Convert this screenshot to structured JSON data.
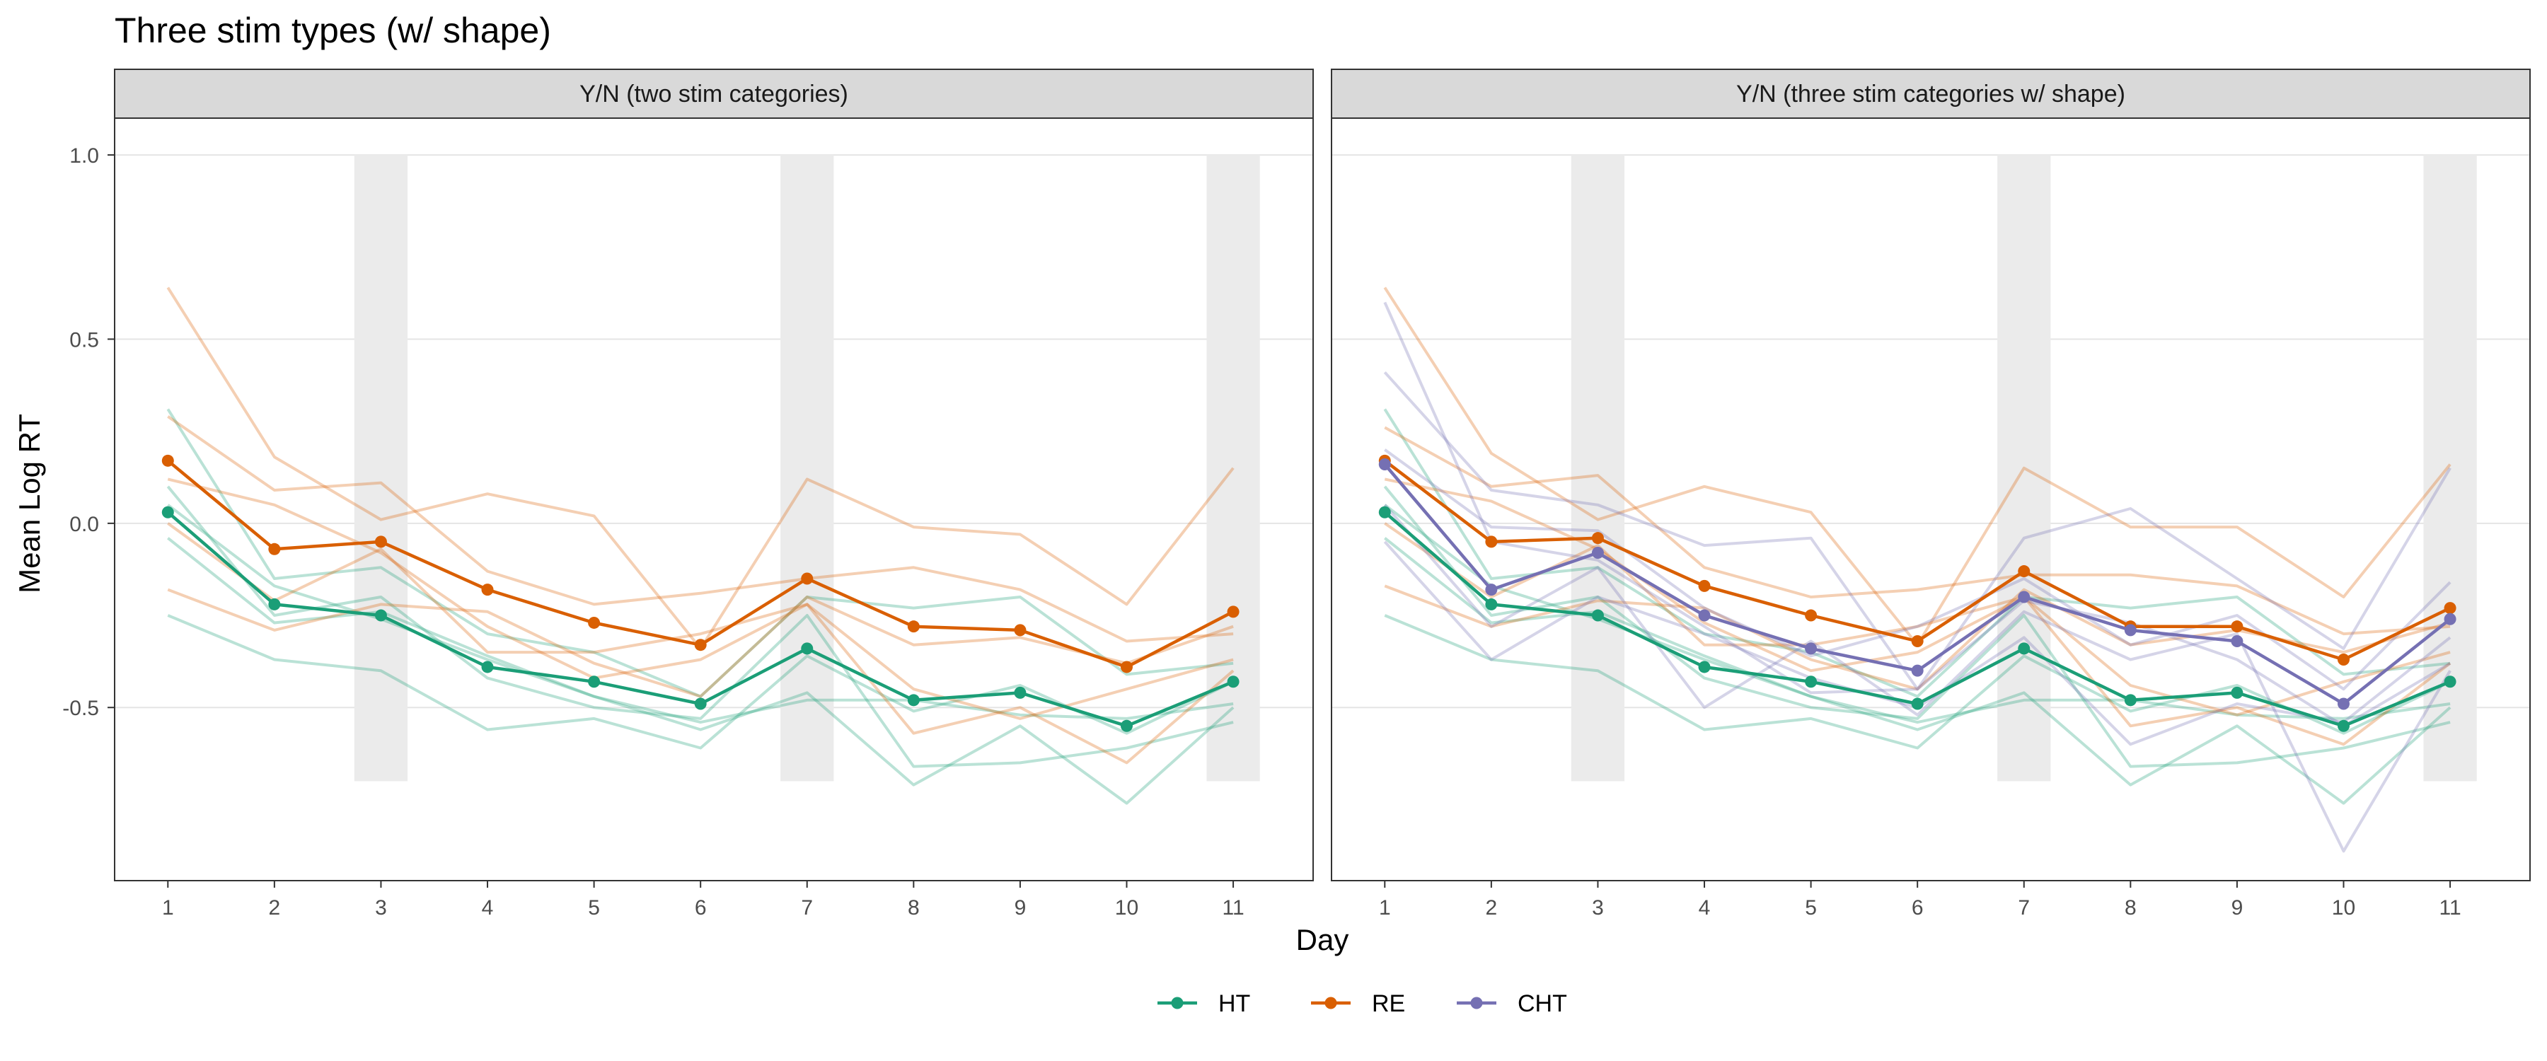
{
  "chart_data": {
    "type": "line",
    "title": "Three stim types (w/ shape)",
    "xlabel": "Day",
    "ylabel": "Mean Log RT",
    "x": [
      1,
      2,
      3,
      4,
      5,
      6,
      7,
      8,
      9,
      10,
      11
    ],
    "x_ticks": [
      "1",
      "2",
      "3",
      "4",
      "5",
      "6",
      "7",
      "8",
      "9",
      "10",
      "11"
    ],
    "y_ticks": [
      1.0,
      0.5,
      0.0,
      -0.5
    ],
    "y_tick_labels": [
      "1.0",
      "0.5",
      "0.0",
      "-0.5"
    ],
    "ylim": [
      -0.97,
      1.1
    ],
    "xlim": [
      0.5,
      11.75
    ],
    "grid": true,
    "legend_position": "bottom",
    "shaded_days": [
      3,
      7,
      11
    ],
    "shade_range": [
      -0.7,
      1.0
    ],
    "colors": {
      "HT": "#1b9e77",
      "RE": "#d95f02",
      "CHT": "#7570b3",
      "shade": "#ebebeb",
      "strip_bg": "#d9d9d9",
      "grid": "#e5e5e5"
    },
    "legend": [
      "HT",
      "RE",
      "CHT"
    ],
    "panels": [
      {
        "strip": "Y/N (two stim categories)",
        "series": [
          {
            "name": "HT",
            "values": [
              0.03,
              -0.22,
              -0.25,
              -0.39,
              -0.43,
              -0.49,
              -0.34,
              -0.48,
              -0.46,
              -0.55,
              -0.43
            ]
          },
          {
            "name": "RE",
            "values": [
              0.17,
              -0.07,
              -0.05,
              -0.18,
              -0.27,
              -0.33,
              -0.15,
              -0.28,
              -0.29,
              -0.39,
              -0.24
            ]
          }
        ],
        "individuals": [
          {
            "group": "HT",
            "values": [
              0.31,
              -0.15,
              -0.12,
              -0.3,
              -0.35,
              -0.47,
              -0.2,
              -0.23,
              -0.2,
              -0.41,
              -0.38
            ]
          },
          {
            "group": "HT",
            "values": [
              0.1,
              -0.25,
              -0.2,
              -0.42,
              -0.5,
              -0.53,
              -0.25,
              -0.66,
              -0.65,
              -0.61,
              -0.54
            ]
          },
          {
            "group": "HT",
            "values": [
              -0.04,
              -0.27,
              -0.24,
              -0.36,
              -0.47,
              -0.56,
              -0.46,
              -0.71,
              -0.55,
              -0.76,
              -0.5
            ]
          },
          {
            "group": "HT",
            "values": [
              -0.25,
              -0.37,
              -0.4,
              -0.56,
              -0.53,
              -0.61,
              -0.36,
              -0.51,
              -0.44,
              -0.57,
              -0.43
            ]
          },
          {
            "group": "HT",
            "values": [
              0.05,
              -0.17,
              -0.26,
              -0.37,
              -0.47,
              -0.54,
              -0.48,
              -0.48,
              -0.52,
              -0.53,
              -0.49
            ]
          },
          {
            "group": "RE",
            "values": [
              0.64,
              0.18,
              0.01,
              0.08,
              0.02,
              -0.34,
              0.12,
              -0.01,
              -0.03,
              -0.22,
              0.15
            ]
          },
          {
            "group": "RE",
            "values": [
              0.29,
              0.09,
              0.11,
              -0.13,
              -0.22,
              -0.19,
              -0.15,
              -0.12,
              -0.18,
              -0.32,
              -0.3
            ]
          },
          {
            "group": "RE",
            "values": [
              0.0,
              -0.21,
              -0.07,
              -0.35,
              -0.35,
              -0.3,
              -0.22,
              -0.57,
              -0.5,
              -0.65,
              -0.4
            ]
          },
          {
            "group": "RE",
            "values": [
              -0.18,
              -0.29,
              -0.22,
              -0.24,
              -0.38,
              -0.47,
              -0.2,
              -0.33,
              -0.31,
              -0.38,
              -0.28
            ]
          },
          {
            "group": "RE",
            "values": [
              0.12,
              0.05,
              -0.08,
              -0.28,
              -0.42,
              -0.37,
              -0.22,
              -0.45,
              -0.53,
              -0.45,
              -0.37
            ]
          }
        ]
      },
      {
        "strip": "Y/N (three stim categories w/ shape)",
        "series": [
          {
            "name": "HT",
            "values": [
              0.03,
              -0.22,
              -0.25,
              -0.39,
              -0.43,
              -0.49,
              -0.34,
              -0.48,
              -0.46,
              -0.55,
              -0.43
            ]
          },
          {
            "name": "RE",
            "values": [
              0.17,
              -0.05,
              -0.04,
              -0.17,
              -0.25,
              -0.32,
              -0.13,
              -0.28,
              -0.28,
              -0.37,
              -0.23
            ]
          },
          {
            "name": "CHT",
            "values": [
              0.16,
              -0.18,
              -0.08,
              -0.25,
              -0.34,
              -0.4,
              -0.2,
              -0.29,
              -0.32,
              -0.49,
              -0.26
            ]
          }
        ],
        "individuals": [
          {
            "group": "HT",
            "values": [
              0.31,
              -0.15,
              -0.12,
              -0.3,
              -0.35,
              -0.47,
              -0.2,
              -0.23,
              -0.2,
              -0.41,
              -0.38
            ]
          },
          {
            "group": "HT",
            "values": [
              0.1,
              -0.25,
              -0.2,
              -0.42,
              -0.5,
              -0.53,
              -0.25,
              -0.66,
              -0.65,
              -0.61,
              -0.54
            ]
          },
          {
            "group": "HT",
            "values": [
              -0.04,
              -0.27,
              -0.24,
              -0.36,
              -0.47,
              -0.56,
              -0.46,
              -0.71,
              -0.55,
              -0.76,
              -0.5
            ]
          },
          {
            "group": "HT",
            "values": [
              -0.25,
              -0.37,
              -0.4,
              -0.56,
              -0.53,
              -0.61,
              -0.36,
              -0.51,
              -0.44,
              -0.57,
              -0.43
            ]
          },
          {
            "group": "HT",
            "values": [
              0.05,
              -0.17,
              -0.26,
              -0.37,
              -0.47,
              -0.54,
              -0.48,
              -0.48,
              -0.52,
              -0.53,
              -0.49
            ]
          },
          {
            "group": "RE",
            "values": [
              0.64,
              0.19,
              0.01,
              0.1,
              0.03,
              -0.33,
              0.15,
              -0.01,
              -0.01,
              -0.2,
              0.16
            ]
          },
          {
            "group": "RE",
            "values": [
              0.26,
              0.1,
              0.13,
              -0.12,
              -0.2,
              -0.18,
              -0.14,
              -0.14,
              -0.17,
              -0.3,
              -0.28
            ]
          },
          {
            "group": "RE",
            "values": [
              0.0,
              -0.2,
              -0.06,
              -0.33,
              -0.33,
              -0.28,
              -0.2,
              -0.55,
              -0.5,
              -0.6,
              -0.38
            ]
          },
          {
            "group": "RE",
            "values": [
              -0.17,
              -0.28,
              -0.21,
              -0.23,
              -0.37,
              -0.45,
              -0.18,
              -0.33,
              -0.29,
              -0.35,
              -0.27
            ]
          },
          {
            "group": "RE",
            "values": [
              0.12,
              0.06,
              -0.07,
              -0.27,
              -0.4,
              -0.35,
              -0.2,
              -0.44,
              -0.52,
              -0.43,
              -0.35
            ]
          },
          {
            "group": "CHT",
            "values": [
              0.41,
              0.09,
              0.05,
              -0.06,
              -0.04,
              -0.45,
              -0.04,
              0.04,
              -0.15,
              -0.34,
              0.15
            ]
          },
          {
            "group": "CHT",
            "values": [
              0.2,
              -0.01,
              -0.02,
              -0.23,
              -0.36,
              -0.28,
              -0.15,
              -0.33,
              -0.25,
              -0.45,
              -0.16
            ]
          },
          {
            "group": "CHT",
            "values": [
              0.05,
              -0.28,
              -0.12,
              -0.5,
              -0.32,
              -0.52,
              -0.24,
              -0.37,
              -0.3,
              -0.89,
              -0.4
            ]
          },
          {
            "group": "CHT",
            "values": [
              -0.05,
              -0.37,
              -0.2,
              -0.3,
              -0.42,
              -0.5,
              -0.31,
              -0.6,
              -0.49,
              -0.54,
              -0.31
            ]
          },
          {
            "group": "CHT",
            "values": [
              0.6,
              -0.05,
              -0.1,
              -0.28,
              -0.46,
              -0.45,
              -0.21,
              -0.27,
              -0.37,
              -0.55,
              -0.38
            ]
          }
        ]
      }
    ]
  }
}
